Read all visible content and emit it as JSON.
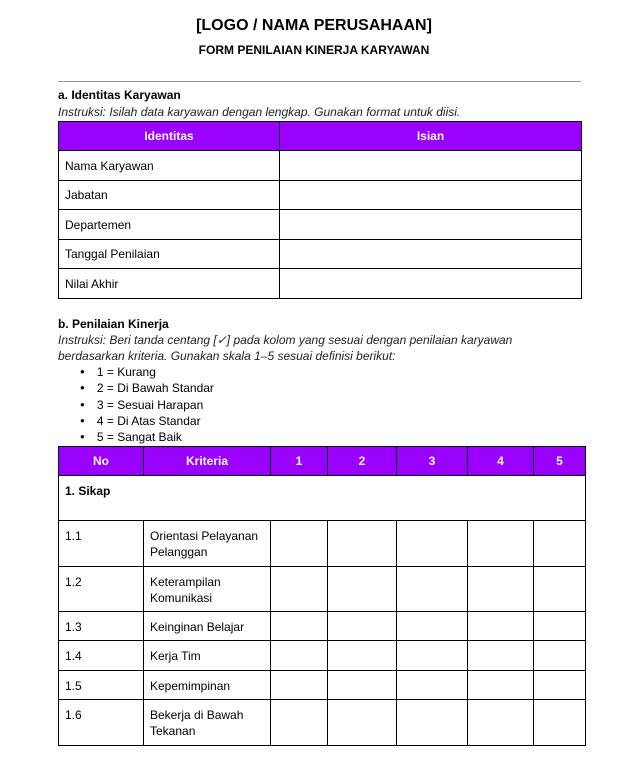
{
  "header": {
    "logo": "[LOGO / NAMA PERUSAHAAN]",
    "title": "FORM PENILAIAN KINERJA KARYAWAN"
  },
  "section_a": {
    "title": "a. Identitas Karyawan",
    "instruction": "Instruksi: Isilah data karyawan dengan lengkap. Gunakan format  untuk diisi.",
    "columns": [
      "Identitas",
      "Isian"
    ],
    "rows": [
      "Nama Karyawan",
      "Jabatan",
      "Departemen",
      "Tanggal Penilaian",
      "Nilai Akhir"
    ]
  },
  "section_b": {
    "title": "b. Penilaian Kinerja",
    "instruction_1": "Instruksi: Beri tanda centang [✓] pada kolom yang sesuai dengan penilaian karyawan",
    "instruction_2": "berdasarkan kriteria. Gunakan skala 1–5 sesuai definisi berikut:",
    "scale": [
      "1 = Kurang",
      "2 = Di Bawah Standar",
      "3 = Sesuai Harapan",
      "4 = Di Atas Standar",
      "5 = Sangat Baik"
    ],
    "columns": [
      "No",
      "Kriteria",
      "1",
      "2",
      "3",
      "4",
      "5"
    ],
    "group": "1. Sikap",
    "rows": [
      {
        "no": "1.1",
        "kriteria": "Orientasi Pelayanan Pelanggan"
      },
      {
        "no": "1.2",
        "kriteria": "Keterampilan Komunikasi"
      },
      {
        "no": "1.3",
        "kriteria": "Keinginan Belajar"
      },
      {
        "no": "1.4",
        "kriteria": "Kerja Tim"
      },
      {
        "no": "1.5",
        "kriteria": "Kepemimpinan"
      },
      {
        "no": "1.6",
        "kriteria": "Bekerja di Bawah Tekanan"
      }
    ]
  },
  "colors": {
    "header_bg": "#9900ff"
  }
}
